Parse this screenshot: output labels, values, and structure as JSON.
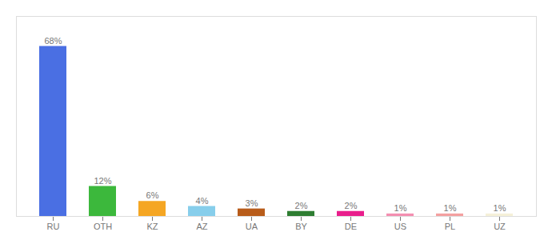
{
  "chart_data": {
    "type": "bar",
    "categories": [
      "RU",
      "OTH",
      "KZ",
      "AZ",
      "UA",
      "BY",
      "DE",
      "US",
      "PL",
      "UZ"
    ],
    "values": [
      68,
      12,
      6,
      4,
      3,
      2,
      2,
      1,
      1,
      1
    ],
    "value_labels": [
      "68%",
      "12%",
      "6%",
      "4%",
      "3%",
      "2%",
      "2%",
      "1%",
      "1%",
      "1%"
    ],
    "colors": [
      "#4a6fe3",
      "#3cb83c",
      "#f5a623",
      "#87ceeb",
      "#b85c1a",
      "#2e7d32",
      "#e91e8c",
      "#f48fb1",
      "#f4a0a0",
      "#f5f0d8"
    ],
    "ylim": [
      0,
      80
    ],
    "data_labels": true,
    "tick_labels": "x",
    "grid": false
  }
}
